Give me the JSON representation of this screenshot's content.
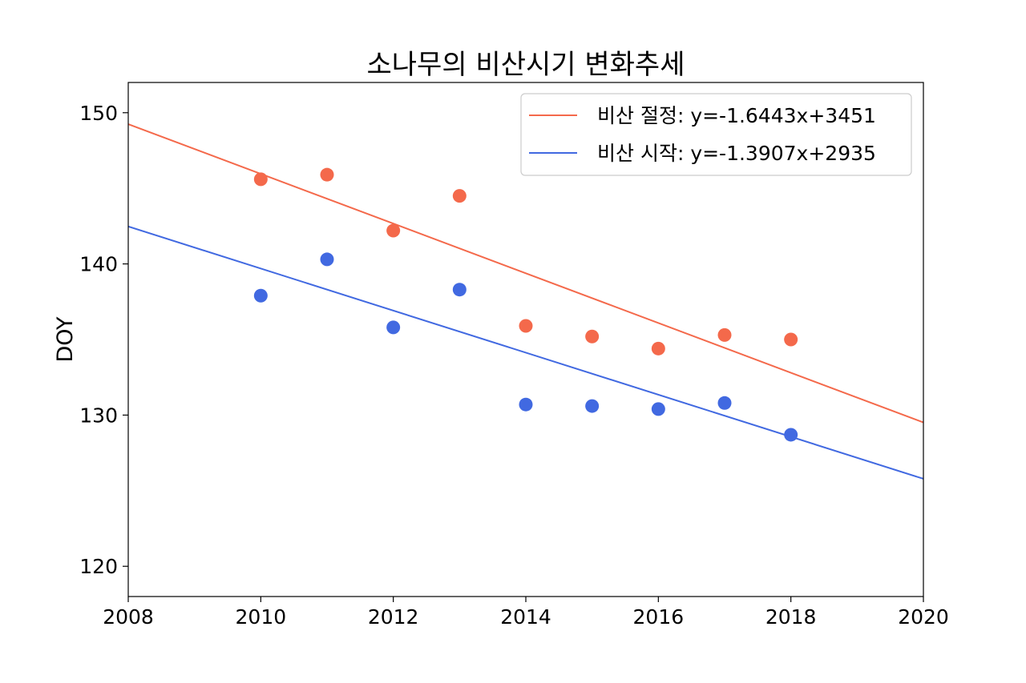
{
  "chart_data": {
    "type": "scatter",
    "title": "소나무의 비산시기 변화추세",
    "xlabel": "",
    "ylabel": "DOY",
    "xlim": [
      2008,
      2020
    ],
    "ylim": [
      118,
      152
    ],
    "x_ticks": [
      2008,
      2010,
      2012,
      2014,
      2016,
      2018,
      2020
    ],
    "y_ticks": [
      120,
      130,
      140,
      150
    ],
    "grid": false,
    "legend_position": "top-right",
    "series": [
      {
        "name": "비산 절정: y=-1.6443x+3451",
        "color": "#f4694b",
        "x": [
          2010,
          2011,
          2012,
          2013,
          2014,
          2015,
          2016,
          2017,
          2018
        ],
        "y": [
          145.6,
          145.9,
          142.2,
          144.5,
          135.9,
          135.2,
          134.4,
          135.3,
          135.0
        ],
        "trend": {
          "slope": -1.6443,
          "intercept": 3451
        }
      },
      {
        "name": "비산 시작: y=-1.3907x+2935",
        "color": "#4169e1",
        "x": [
          2010,
          2011,
          2012,
          2013,
          2014,
          2015,
          2016,
          2017,
          2018
        ],
        "y": [
          137.9,
          140.3,
          135.8,
          138.3,
          130.7,
          130.6,
          130.4,
          130.8,
          128.7
        ],
        "trend": {
          "slope": -1.3907,
          "intercept": 2935
        }
      }
    ]
  }
}
